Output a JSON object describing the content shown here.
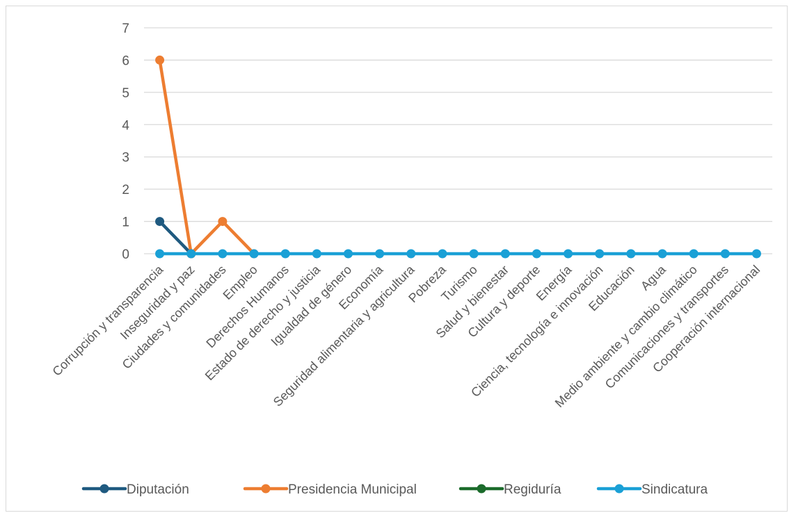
{
  "chart_data": {
    "type": "line",
    "title": "",
    "xlabel": "",
    "ylabel": "",
    "ylim": [
      0,
      7
    ],
    "yticks": [
      "0",
      "1",
      "2",
      "3",
      "4",
      "5",
      "6",
      "7"
    ],
    "grid": true,
    "legend_position": "bottom",
    "categories": [
      "Corrupción y transparencia",
      "Inseguridad y paz",
      "Ciudades y comunidades",
      "Empleo",
      "Derechos Humanos",
      "Estado de derecho y justicia",
      "Igualdad de género",
      "Economía",
      "Seguridad alimentaria y agricultura",
      "Pobreza",
      "Turismo",
      "Salud y bienestar",
      "Cultura y deporte",
      "Energía",
      "Ciencia, tecnología e innovación",
      "Educación",
      "Agua",
      "Medio ambiente y cambio climático",
      "Comunicaciones y transportes",
      "Cooperación internacional"
    ],
    "series": [
      {
        "name": "Diputación",
        "color": "#1f5a80",
        "values": [
          1,
          0,
          null,
          null,
          null,
          null,
          null,
          null,
          null,
          null,
          null,
          null,
          null,
          null,
          null,
          null,
          null,
          null,
          null,
          null
        ]
      },
      {
        "name": "Presidencia Municipal",
        "color": "#ed7d31",
        "values": [
          6,
          0,
          1,
          0,
          null,
          null,
          null,
          null,
          null,
          null,
          null,
          null,
          null,
          null,
          null,
          null,
          null,
          null,
          null,
          null
        ]
      },
      {
        "name": "Regiduría",
        "color": "#1b6b2b",
        "values": [
          null,
          null,
          null,
          null,
          null,
          null,
          null,
          null,
          null,
          null,
          null,
          null,
          null,
          null,
          null,
          null,
          null,
          null,
          null,
          null
        ]
      },
      {
        "name": "Sindicatura",
        "color": "#1aa0d6",
        "values": [
          0,
          0,
          0,
          0,
          0,
          0,
          0,
          0,
          0,
          0,
          0,
          0,
          0,
          0,
          0,
          0,
          0,
          0,
          0,
          0
        ]
      }
    ]
  }
}
